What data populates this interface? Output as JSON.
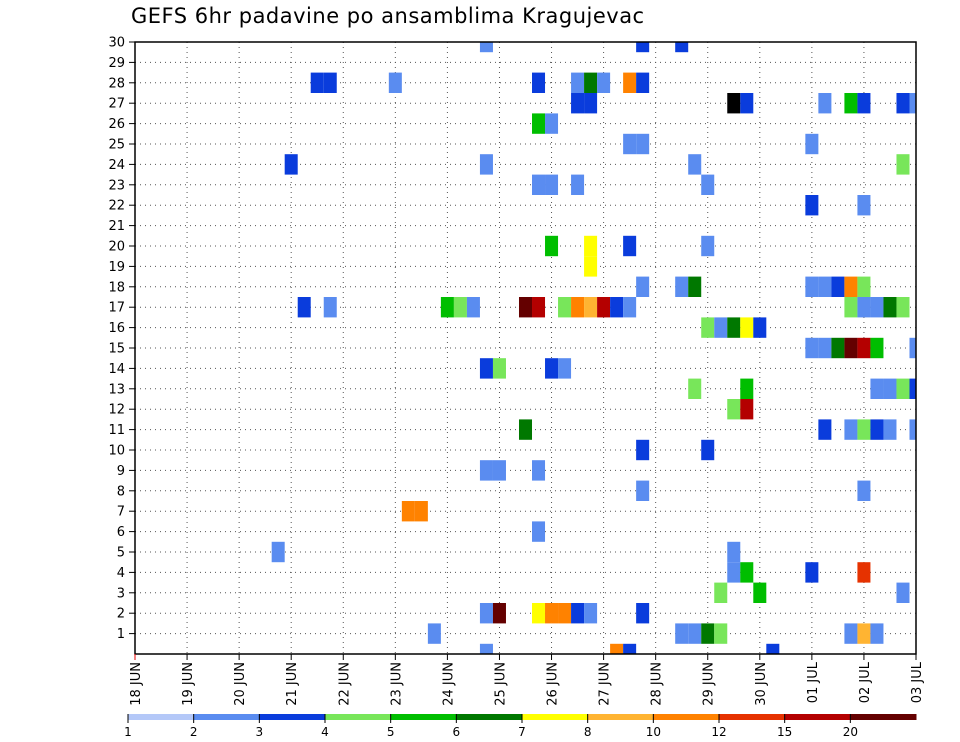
{
  "chart_data": {
    "type": "heatmap",
    "title": "GEFS 6hr padavine po ansamblima Kragujevac",
    "x_tick_labels": [
      "18 JUN",
      "19 JUN",
      "20 JUN",
      "21 JUN",
      "22 JUN",
      "23 JUN",
      "24 JUN",
      "25 JUN",
      "26 JUN",
      "27 JUN",
      "28 JUN",
      "29 JUN",
      "30 JUN",
      "01 JUL",
      "02 JUL",
      "03 JUL"
    ],
    "y_tick_labels": [
      "1",
      "2",
      "3",
      "4",
      "5",
      "6",
      "7",
      "8",
      "9",
      "10",
      "11",
      "12",
      "13",
      "14",
      "15",
      "16",
      "17",
      "18",
      "19",
      "20",
      "21",
      "22",
      "23",
      "24",
      "25",
      "26",
      "27",
      "28",
      "29",
      "30"
    ],
    "xlim": [
      0,
      15
    ],
    "ylim": [
      0,
      30
    ],
    "time_step_days": 0.25,
    "grid": "dotted",
    "colorbar": {
      "placement": "bottom",
      "tick_labels": [
        "1",
        "2",
        "3",
        "4",
        "5",
        "6",
        "7",
        "8",
        "10",
        "12",
        "15",
        "20"
      ],
      "colors": [
        "#b4c8f8",
        "#5a8cf0",
        "#0a3cdc",
        "#78e65a",
        "#00be00",
        "#007800",
        "#ffff00",
        "#ffb432",
        "#ff8200",
        "#e63200",
        "#b40000",
        "#640000"
      ]
    },
    "cells": [
      [
        6.75,
        30,
        1
      ],
      [
        9.75,
        30,
        2
      ],
      [
        10.5,
        30,
        2
      ],
      [
        3.5,
        28,
        2
      ],
      [
        3.75,
        28,
        2
      ],
      [
        5,
        28,
        1
      ],
      [
        7.75,
        28,
        2
      ],
      [
        8.5,
        28,
        1
      ],
      [
        8.75,
        28,
        5
      ],
      [
        9,
        28,
        1
      ],
      [
        9.5,
        28,
        8
      ],
      [
        9.75,
        28,
        2
      ],
      [
        8.5,
        27,
        2
      ],
      [
        8.75,
        27,
        2
      ],
      [
        11.5,
        27,
        12
      ],
      [
        11.75,
        27,
        2
      ],
      [
        13.25,
        27,
        1
      ],
      [
        13.75,
        27,
        4
      ],
      [
        14,
        27,
        2
      ],
      [
        14.75,
        27,
        2
      ],
      [
        15,
        27,
        1
      ],
      [
        7.75,
        26,
        4
      ],
      [
        8,
        26,
        1
      ],
      [
        9.5,
        25,
        1
      ],
      [
        9.75,
        25,
        1
      ],
      [
        13,
        25,
        1
      ],
      [
        3,
        24,
        2
      ],
      [
        6.75,
        24,
        1
      ],
      [
        10.75,
        24,
        1
      ],
      [
        14.75,
        24,
        3
      ],
      [
        7.75,
        23,
        1
      ],
      [
        8,
        23,
        1
      ],
      [
        8.5,
        23,
        1
      ],
      [
        11,
        23,
        1
      ],
      [
        13,
        22,
        2
      ],
      [
        14,
        22,
        1
      ],
      [
        8,
        20,
        4
      ],
      [
        8.75,
        20,
        6
      ],
      [
        9.5,
        20,
        2
      ],
      [
        11,
        20,
        1
      ],
      [
        8.75,
        19,
        6
      ],
      [
        9.75,
        18,
        1
      ],
      [
        10.5,
        18,
        1
      ],
      [
        10.75,
        18,
        5
      ],
      [
        13,
        18,
        1
      ],
      [
        13.25,
        18,
        1
      ],
      [
        13.5,
        18,
        2
      ],
      [
        13.75,
        18,
        8
      ],
      [
        14,
        18,
        3
      ],
      [
        3.25,
        17,
        2
      ],
      [
        3.75,
        17,
        1
      ],
      [
        6,
        17,
        4
      ],
      [
        6.25,
        17,
        3
      ],
      [
        6.5,
        17,
        1
      ],
      [
        7.5,
        17,
        11
      ],
      [
        7.75,
        17,
        10
      ],
      [
        8.25,
        17,
        3
      ],
      [
        8.5,
        17,
        8
      ],
      [
        8.75,
        17,
        7
      ],
      [
        9,
        17,
        10
      ],
      [
        9.25,
        17,
        2
      ],
      [
        9.5,
        17,
        1
      ],
      [
        13.75,
        17,
        3
      ],
      [
        14,
        17,
        1
      ],
      [
        14.25,
        17,
        1
      ],
      [
        14.5,
        17,
        5
      ],
      [
        14.75,
        17,
        3
      ],
      [
        11,
        16,
        3
      ],
      [
        11.25,
        16,
        1
      ],
      [
        11.5,
        16,
        5
      ],
      [
        11.75,
        16,
        6
      ],
      [
        12,
        16,
        2
      ],
      [
        13,
        15,
        1
      ],
      [
        13.25,
        15,
        1
      ],
      [
        13.5,
        15,
        5
      ],
      [
        13.75,
        15,
        11
      ],
      [
        14,
        15,
        10
      ],
      [
        14.25,
        15,
        4
      ],
      [
        15,
        15,
        1
      ],
      [
        6.75,
        14,
        2
      ],
      [
        7,
        14,
        3
      ],
      [
        8,
        14,
        2
      ],
      [
        8.25,
        14,
        1
      ],
      [
        10.75,
        13,
        3
      ],
      [
        11.75,
        13,
        4
      ],
      [
        14.25,
        13,
        1
      ],
      [
        14.5,
        13,
        1
      ],
      [
        14.75,
        13,
        3
      ],
      [
        15,
        13,
        2
      ],
      [
        11.5,
        12,
        3
      ],
      [
        11.75,
        12,
        10
      ],
      [
        7.5,
        11,
        5
      ],
      [
        13.25,
        11,
        2
      ],
      [
        13.75,
        11,
        1
      ],
      [
        14,
        11,
        3
      ],
      [
        14.25,
        11,
        2
      ],
      [
        14.5,
        11,
        1
      ],
      [
        15,
        11,
        1
      ],
      [
        9.75,
        10,
        2
      ],
      [
        11,
        10,
        2
      ],
      [
        6.75,
        9,
        1
      ],
      [
        7,
        9,
        1
      ],
      [
        7.75,
        9,
        1
      ],
      [
        9.75,
        8,
        1
      ],
      [
        14,
        8,
        1
      ],
      [
        5.25,
        7,
        8
      ],
      [
        5.5,
        7,
        8
      ],
      [
        7.75,
        6,
        1
      ],
      [
        2.75,
        5,
        1
      ],
      [
        11.5,
        5,
        1
      ],
      [
        11.5,
        4,
        1
      ],
      [
        11.75,
        4,
        4
      ],
      [
        13,
        4,
        2
      ],
      [
        14,
        4,
        9
      ],
      [
        11.25,
        3,
        3
      ],
      [
        12,
        3,
        4
      ],
      [
        14.75,
        3,
        1
      ],
      [
        6.75,
        2,
        1
      ],
      [
        7,
        2,
        11
      ],
      [
        7.75,
        2,
        6
      ],
      [
        8,
        2,
        8
      ],
      [
        8.25,
        2,
        8
      ],
      [
        8.5,
        2,
        2
      ],
      [
        8.75,
        2,
        1
      ],
      [
        9.75,
        2,
        2
      ],
      [
        5.75,
        1,
        1
      ],
      [
        10.5,
        1,
        1
      ],
      [
        10.75,
        1,
        1
      ],
      [
        11,
        1,
        5
      ],
      [
        11.25,
        1,
        3
      ],
      [
        13.75,
        1,
        1
      ],
      [
        14,
        1,
        7
      ],
      [
        14.25,
        1,
        1
      ],
      [
        6.75,
        0,
        1
      ],
      [
        9.25,
        0,
        8
      ],
      [
        9.5,
        0,
        2
      ],
      [
        12.25,
        0,
        2
      ]
    ]
  }
}
